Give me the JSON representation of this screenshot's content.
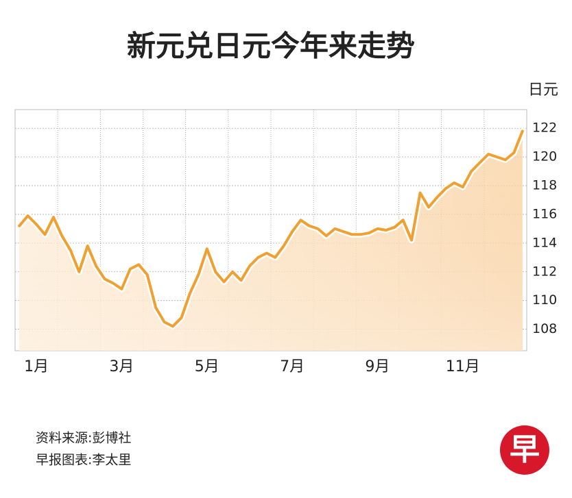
{
  "chart_data": {
    "type": "line",
    "title": "新元兑日元今年来走势",
    "y_label": "日元",
    "categories": [
      null,
      null,
      "1月",
      null,
      null,
      null,
      null,
      null,
      null,
      null,
      null,
      null,
      "3月",
      null,
      null,
      null,
      null,
      null,
      null,
      null,
      null,
      null,
      "5月",
      null,
      null,
      null,
      null,
      null,
      null,
      null,
      null,
      null,
      "7月",
      null,
      null,
      null,
      null,
      null,
      null,
      null,
      null,
      null,
      "9月",
      null,
      null,
      null,
      null,
      null,
      null,
      null,
      null,
      null,
      "11月",
      null,
      null,
      null,
      null,
      null,
      null,
      null
    ],
    "series": [
      {
        "name": "新元兑日元",
        "color": "#f0a030",
        "values": [
          115.2,
          115.9,
          115.3,
          114.6,
          115.8,
          114.5,
          113.5,
          112.0,
          113.8,
          112.4,
          111.5,
          111.2,
          110.8,
          112.2,
          112.5,
          111.8,
          109.5,
          108.5,
          108.2,
          108.8,
          110.5,
          111.8,
          113.6,
          112.0,
          111.3,
          112.0,
          111.4,
          112.4,
          113.0,
          113.3,
          113.0,
          113.8,
          114.8,
          115.6,
          115.2,
          115.0,
          114.5,
          115.0,
          114.8,
          114.6,
          114.6,
          114.7,
          115.0,
          114.9,
          115.1,
          115.6,
          114.2,
          117.5,
          116.5,
          117.2,
          117.8,
          118.2,
          117.9,
          119.0,
          119.6,
          120.2,
          120.0,
          119.8,
          120.3,
          121.8
        ]
      }
    ],
    "ylim": [
      106.5,
      123.3
    ],
    "yticks": [
      108,
      110,
      112,
      114,
      116,
      118,
      120,
      122
    ],
    "grid": true,
    "source": "资料来源:彭博社",
    "credit": "早报图表:李太里",
    "logo": "早"
  }
}
